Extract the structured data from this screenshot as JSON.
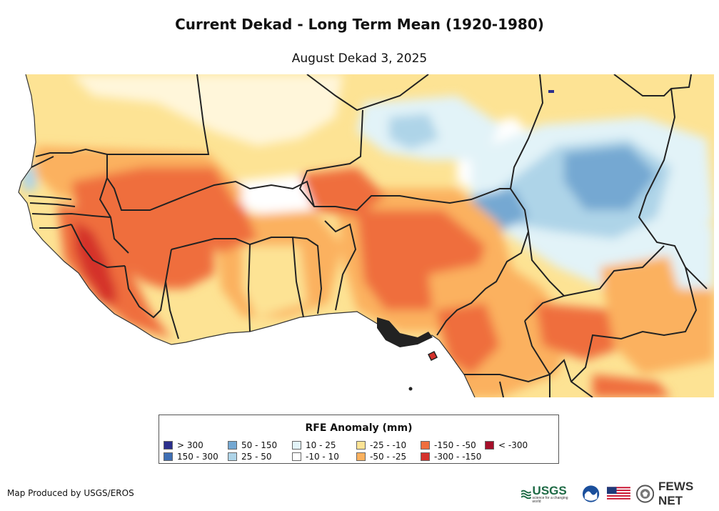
{
  "header": {
    "title": "Current Dekad - Long Term Mean (1920-1980)",
    "subtitle": "August Dekad 3, 2025"
  },
  "legend": {
    "title": "RFE Anomaly (mm)",
    "items": [
      {
        "label": "> 300",
        "color": "#2b2f8c"
      },
      {
        "label": "150 - 300",
        "color": "#3f6fb4"
      },
      {
        "label": "50 - 150",
        "color": "#74a8d2"
      },
      {
        "label": "25 - 50",
        "color": "#aed4e8"
      },
      {
        "label": "10 - 25",
        "color": "#e2f3f8"
      },
      {
        "label": "-10 - 10",
        "color": "#ffffff"
      },
      {
        "label": "-25 - -10",
        "color": "#fde394"
      },
      {
        "label": "-50 - -25",
        "color": "#fbb15e"
      },
      {
        "label": "-150 - -50",
        "color": "#ef6e3e"
      },
      {
        "label": "-300 - -150",
        "color": "#d4322c"
      },
      {
        "label": "< -300",
        "color": "#a50f2a"
      }
    ]
  },
  "footer": {
    "credit": "Map Produced by USGS/EROS",
    "usgs_logo": "USGS",
    "usgs_tagline": "science for a changing world",
    "fews_logo": "FEWS NET"
  },
  "icons": [
    "noaa-logo-icon",
    "us-flag-icon",
    "state-dept-seal-icon"
  ]
}
